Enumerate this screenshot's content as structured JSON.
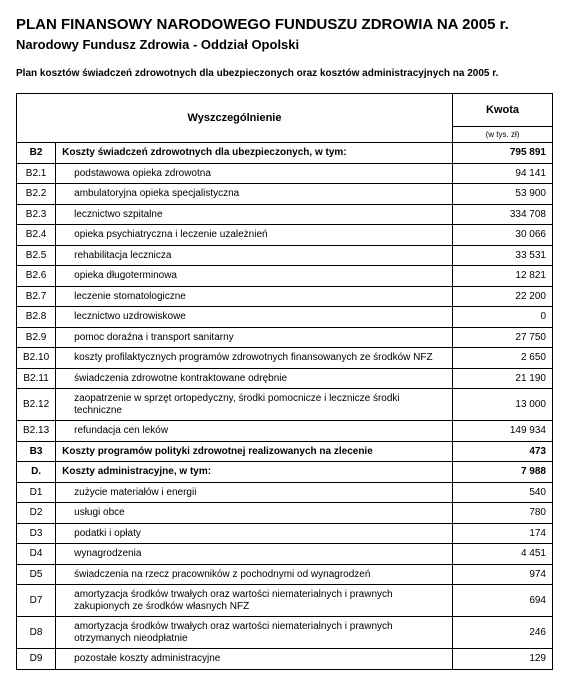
{
  "title": "PLAN FINANSOWY NARODOWEGO FUNDUSZU ZDROWIA NA 2005 r.",
  "subtitle": "Narodowy Fundusz Zdrowia - Oddział Opolski",
  "description": "Plan kosztów świadczeń zdrowotnych dla ubezpieczonych oraz kosztów administracyjnych na 2005 r.",
  "headers": {
    "col_desc": "Wyszczególnienie",
    "col_amount": "Kwota",
    "col_amount_unit": "(w tys. zł)"
  },
  "rows": [
    {
      "code": "B2",
      "desc": "Koszty świadczeń zdrowotnych dla ubezpieczonych, w tym:",
      "amount": "795 891",
      "bold": true,
      "indent": false
    },
    {
      "code": "B2.1",
      "desc": "podstawowa opieka zdrowotna",
      "amount": "94 141",
      "bold": false,
      "indent": true
    },
    {
      "code": "B2.2",
      "desc": "ambulatoryjna opieka specjalistyczna",
      "amount": "53 900",
      "bold": false,
      "indent": true
    },
    {
      "code": "B2.3",
      "desc": "lecznictwo szpitalne",
      "amount": "334 708",
      "bold": false,
      "indent": true
    },
    {
      "code": "B2.4",
      "desc": "opieka psychiatryczna i leczenie uzależnień",
      "amount": "30 066",
      "bold": false,
      "indent": true
    },
    {
      "code": "B2.5",
      "desc": "rehabilitacja lecznicza",
      "amount": "33 531",
      "bold": false,
      "indent": true
    },
    {
      "code": "B2.6",
      "desc": "opieka długoterminowa",
      "amount": "12 821",
      "bold": false,
      "indent": true
    },
    {
      "code": "B2.7",
      "desc": "leczenie stomatologiczne",
      "amount": "22 200",
      "bold": false,
      "indent": true
    },
    {
      "code": "B2.8",
      "desc": "lecznictwo uzdrowiskowe",
      "amount": "0",
      "bold": false,
      "indent": true
    },
    {
      "code": "B2.9",
      "desc": "pomoc doraźna i transport sanitarny",
      "amount": "27 750",
      "bold": false,
      "indent": true
    },
    {
      "code": "B2.10",
      "desc": "koszty profilaktycznych programów zdrowotnych  finansowanych ze środków NFZ",
      "amount": "2 650",
      "bold": false,
      "indent": true
    },
    {
      "code": "B2.11",
      "desc": "świadczenia zdrowotne kontraktowane odrębnie",
      "amount": "21 190",
      "bold": false,
      "indent": true
    },
    {
      "code": "B2.12",
      "desc": "zaopatrzenie w sprzęt ortopedyczny, środki pomocnicze i lecznicze środki techniczne",
      "amount": "13 000",
      "bold": false,
      "indent": true
    },
    {
      "code": "B2.13",
      "desc": "refundacja cen leków",
      "amount": "149 934",
      "bold": false,
      "indent": true
    },
    {
      "code": "B3",
      "desc": "Koszty programów polityki zdrowotnej realizowanych na zlecenie",
      "amount": "473",
      "bold": true,
      "indent": false
    },
    {
      "code": "D.",
      "desc": "Koszty administracyjne, w tym:",
      "amount": "7 988",
      "bold": true,
      "indent": false
    },
    {
      "code": "D1",
      "desc": "zużycie materiałów i energii",
      "amount": "540",
      "bold": false,
      "indent": true
    },
    {
      "code": "D2",
      "desc": "usługi obce",
      "amount": "780",
      "bold": false,
      "indent": true
    },
    {
      "code": "D3",
      "desc": "podatki i opłaty",
      "amount": "174",
      "bold": false,
      "indent": true
    },
    {
      "code": "D4",
      "desc": "wynagrodzenia",
      "amount": "4 451",
      "bold": false,
      "indent": true
    },
    {
      "code": "D5",
      "desc": "świadczenia na rzecz pracowników z pochodnymi od wynagrodzeń",
      "amount": "974",
      "bold": false,
      "indent": true
    },
    {
      "code": "D7",
      "desc": "amortyzacja środków trwałych oraz wartości niematerialnych i prawnych zakupionych ze środków własnych NFZ",
      "amount": "694",
      "bold": false,
      "indent": true
    },
    {
      "code": "D8",
      "desc": "amortyzacja środków trwałych oraz wartości niematerialnych i prawnych otrzymanych nieodpłatnie",
      "amount": "246",
      "bold": false,
      "indent": true
    },
    {
      "code": "D9",
      "desc": "pozostałe koszty administracyjne",
      "amount": "129",
      "bold": false,
      "indent": true
    }
  ]
}
